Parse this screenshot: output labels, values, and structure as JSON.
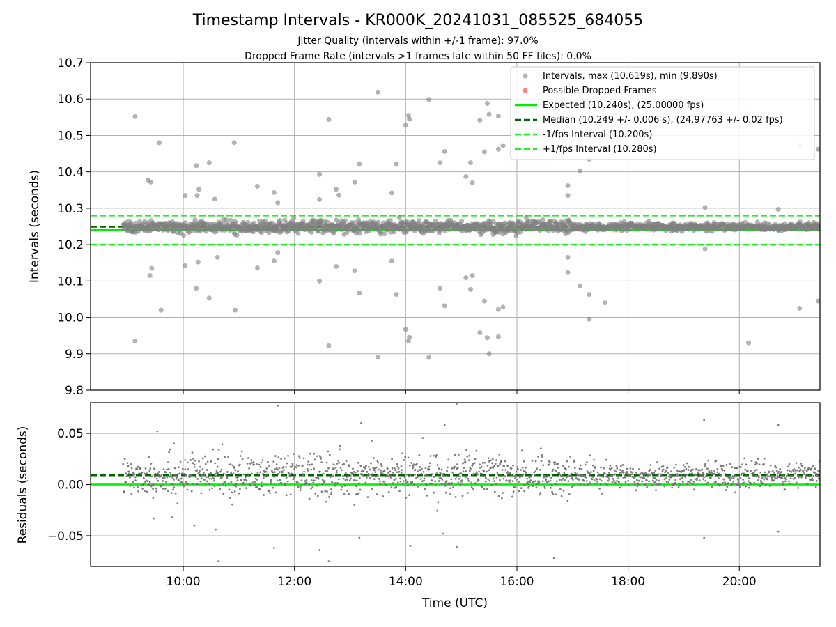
{
  "chart_data": [
    {
      "type": "scatter",
      "title": "Timestamp Intervals - KR000K_20241031_085525_684055",
      "subtitle_lines": [
        "Jitter Quality (intervals within +/-1 frame): 97.0%",
        "Dropped Frame Rate (intervals >1 frames late within 50 FF files): 0.0%"
      ],
      "xlabel": "",
      "ylabel": "Intervals (seconds)",
      "xlim": [
        "08:20",
        "21:27"
      ],
      "ylim": [
        9.8,
        10.7
      ],
      "yticks": [
        "9.8",
        "9.9",
        "10.0",
        "10.1",
        "10.2",
        "10.3",
        "10.4",
        "10.5",
        "10.6",
        "10.7"
      ],
      "xticks": [
        "10:00",
        "12:00",
        "14:00",
        "16:00",
        "18:00",
        "20:00"
      ],
      "grid": true,
      "legend_position": "top-right",
      "legend": [
        "Intervals, max (10.619s), min (9.890s)",
        "Possible Dropped Frames",
        "Expected (10.240s), (25.00000 fps)",
        "Median (10.249 +/- 0.006 s), (24.97763 +/- 0.02 fps)",
        "-1/fps Interval (10.200s)",
        "+1/fps Interval (10.280s)"
      ],
      "reference_lines": [
        {
          "name": "Expected (10.240s), (25.00000 fps)",
          "y": 10.24,
          "color": "#00ee00",
          "style": "solid"
        },
        {
          "name": "Median (10.249 +/- 0.006 s), (24.97763 +/- 0.02 fps)",
          "y": 10.249,
          "color": "#006400",
          "style": "dashed"
        },
        {
          "name": "-1/fps Interval (10.200s)",
          "y": 10.2,
          "color": "#22ee22",
          "style": "dashed"
        },
        {
          "name": "+1/fps Interval (10.280s)",
          "y": 10.28,
          "color": "#22ee22",
          "style": "dashed"
        }
      ],
      "bulk_series": {
        "name": "Intervals, max (10.619s), min (9.890s)",
        "x_range": [
          "08:55",
          "21:27"
        ],
        "y_center": 10.249,
        "y_spread": 0.012,
        "color": "#808080"
      },
      "outliers": [
        {
          "x": "09:08",
          "y": 10.552
        },
        {
          "x": "09:08",
          "y": 9.935
        },
        {
          "x": "09:22",
          "y": 10.378
        },
        {
          "x": "09:25",
          "y": 10.372
        },
        {
          "x": "09:24",
          "y": 10.115
        },
        {
          "x": "09:26",
          "y": 10.135
        },
        {
          "x": "09:34",
          "y": 10.48
        },
        {
          "x": "09:36",
          "y": 10.02
        },
        {
          "x": "10:02",
          "y": 10.335
        },
        {
          "x": "10:02",
          "y": 10.142
        },
        {
          "x": "10:14",
          "y": 10.417
        },
        {
          "x": "10:15",
          "y": 10.335
        },
        {
          "x": "10:17",
          "y": 10.352
        },
        {
          "x": "10:14",
          "y": 10.08
        },
        {
          "x": "10:16",
          "y": 10.152
        },
        {
          "x": "10:28",
          "y": 10.425
        },
        {
          "x": "10:28",
          "y": 10.053
        },
        {
          "x": "10:34",
          "y": 10.325
        },
        {
          "x": "10:37",
          "y": 10.165
        },
        {
          "x": "10:55",
          "y": 10.48
        },
        {
          "x": "10:56",
          "y": 10.02
        },
        {
          "x": "11:20",
          "y": 10.36
        },
        {
          "x": "11:20",
          "y": 10.136
        },
        {
          "x": "11:38",
          "y": 10.343
        },
        {
          "x": "11:42",
          "y": 10.315
        },
        {
          "x": "11:38",
          "y": 10.155
        },
        {
          "x": "11:42",
          "y": 10.178
        },
        {
          "x": "12:27",
          "y": 10.393
        },
        {
          "x": "12:27",
          "y": 10.324
        },
        {
          "x": "12:37",
          "y": 10.544
        },
        {
          "x": "12:45",
          "y": 10.352
        },
        {
          "x": "12:48",
          "y": 10.336
        },
        {
          "x": "12:27",
          "y": 10.1
        },
        {
          "x": "12:37",
          "y": 9.922
        },
        {
          "x": "12:45",
          "y": 10.14
        },
        {
          "x": "13:05",
          "y": 10.372
        },
        {
          "x": "13:10",
          "y": 10.422
        },
        {
          "x": "13:05",
          "y": 10.128
        },
        {
          "x": "13:10",
          "y": 10.067
        },
        {
          "x": "13:30",
          "y": 10.619
        },
        {
          "x": "13:30",
          "y": 9.89
        },
        {
          "x": "13:45",
          "y": 10.342
        },
        {
          "x": "13:50",
          "y": 10.422
        },
        {
          "x": "13:45",
          "y": 10.155
        },
        {
          "x": "13:50",
          "y": 10.063
        },
        {
          "x": "14:00",
          "y": 10.528
        },
        {
          "x": "14:03",
          "y": 10.555
        },
        {
          "x": "14:04",
          "y": 10.545
        },
        {
          "x": "14:00",
          "y": 9.967
        },
        {
          "x": "14:03",
          "y": 9.935
        },
        {
          "x": "14:04",
          "y": 9.945
        },
        {
          "x": "14:25",
          "y": 10.599
        },
        {
          "x": "14:25",
          "y": 9.89
        },
        {
          "x": "14:37",
          "y": 10.425
        },
        {
          "x": "14:42",
          "y": 10.456
        },
        {
          "x": "14:37",
          "y": 10.08
        },
        {
          "x": "14:42",
          "y": 10.032
        },
        {
          "x": "15:05",
          "y": 10.387
        },
        {
          "x": "15:10",
          "y": 10.425
        },
        {
          "x": "15:12",
          "y": 10.37
        },
        {
          "x": "15:05",
          "y": 10.109
        },
        {
          "x": "15:10",
          "y": 10.077
        },
        {
          "x": "15:12",
          "y": 10.115
        },
        {
          "x": "15:20",
          "y": 10.542
        },
        {
          "x": "15:20",
          "y": 9.958
        },
        {
          "x": "15:25",
          "y": 10.455
        },
        {
          "x": "15:28",
          "y": 10.588
        },
        {
          "x": "15:30",
          "y": 10.558
        },
        {
          "x": "15:25",
          "y": 10.045
        },
        {
          "x": "15:28",
          "y": 9.944
        },
        {
          "x": "15:30",
          "y": 9.9
        },
        {
          "x": "15:40",
          "y": 10.462
        },
        {
          "x": "15:45",
          "y": 10.472
        },
        {
          "x": "15:40",
          "y": 10.022
        },
        {
          "x": "15:45",
          "y": 10.028
        },
        {
          "x": "15:40",
          "y": 10.553
        },
        {
          "x": "15:40",
          "y": 9.947
        },
        {
          "x": "16:55",
          "y": 10.362
        },
        {
          "x": "16:55",
          "y": 10.335
        },
        {
          "x": "16:55",
          "y": 10.165
        },
        {
          "x": "16:55",
          "y": 10.123
        },
        {
          "x": "17:08",
          "y": 10.403
        },
        {
          "x": "17:08",
          "y": 10.087
        },
        {
          "x": "17:18",
          "y": 10.435
        },
        {
          "x": "17:18",
          "y": 10.063
        },
        {
          "x": "17:18",
          "y": 9.995
        },
        {
          "x": "17:35",
          "y": 10.04
        },
        {
          "x": "19:23",
          "y": 10.302
        },
        {
          "x": "19:23",
          "y": 10.188
        },
        {
          "x": "20:10",
          "y": 10.56
        },
        {
          "x": "20:10",
          "y": 9.93
        },
        {
          "x": "20:42",
          "y": 10.297
        },
        {
          "x": "21:05",
          "y": 10.473
        },
        {
          "x": "21:05",
          "y": 10.025
        },
        {
          "x": "21:25",
          "y": 10.462
        },
        {
          "x": "21:25",
          "y": 10.045
        }
      ]
    },
    {
      "type": "scatter",
      "xlabel": "Time (UTC)",
      "ylabel": "Residuals (seconds)",
      "xlim": [
        "08:20",
        "21:27"
      ],
      "ylim": [
        -0.08,
        0.08
      ],
      "yticks": [
        "−0.05",
        "0.00",
        "0.05"
      ],
      "xticks": [
        "10:00",
        "12:00",
        "14:00",
        "16:00",
        "18:00",
        "20:00"
      ],
      "grid": true,
      "reference_lines": [
        {
          "y": 0.0,
          "color": "#00ee00",
          "style": "solid"
        },
        {
          "y": 0.009,
          "color": "#006400",
          "style": "dashed"
        }
      ],
      "bulk_series": {
        "x_range": [
          "08:55",
          "21:27"
        ],
        "y_center": 0.009,
        "y_spread": 0.012,
        "color": "#707070"
      },
      "outliers": [
        {
          "x": "09:32",
          "y": 0.052
        },
        {
          "x": "09:28",
          "y": -0.033
        },
        {
          "x": "09:48",
          "y": -0.032
        },
        {
          "x": "09:50",
          "y": 0.04
        },
        {
          "x": "10:12",
          "y": -0.04
        },
        {
          "x": "10:35",
          "y": -0.044
        },
        {
          "x": "10:38",
          "y": -0.075
        },
        {
          "x": "11:38",
          "y": -0.062
        },
        {
          "x": "11:42",
          "y": 0.077
        },
        {
          "x": "12:27",
          "y": -0.064
        },
        {
          "x": "12:37",
          "y": -0.075
        },
        {
          "x": "13:10",
          "y": -0.052
        },
        {
          "x": "13:12",
          "y": 0.06
        },
        {
          "x": "14:05",
          "y": -0.06
        },
        {
          "x": "14:42",
          "y": 0.058
        },
        {
          "x": "14:40",
          "y": -0.048
        },
        {
          "x": "14:55",
          "y": 0.079
        },
        {
          "x": "14:55",
          "y": -0.061
        },
        {
          "x": "16:40",
          "y": -0.072
        },
        {
          "x": "19:22",
          "y": 0.063
        },
        {
          "x": "19:22",
          "y": -0.052
        },
        {
          "x": "20:42",
          "y": 0.058
        },
        {
          "x": "20:42",
          "y": -0.046
        }
      ]
    }
  ]
}
